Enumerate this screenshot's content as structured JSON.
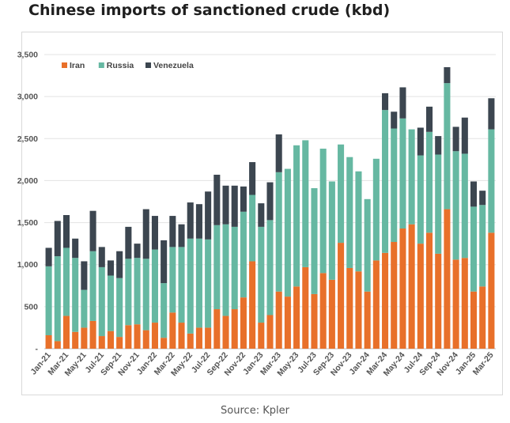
{
  "title": "Chinese imports of sanctioned crude (kbd)",
  "source": "Source: Kpler",
  "chart_data": {
    "type": "bar",
    "stacked": true,
    "title": "Chinese imports of sanctioned crude (kbd)",
    "xlabel": "",
    "ylabel": "",
    "ylim": [
      0,
      3500
    ],
    "yticks": [
      0,
      500,
      1000,
      1500,
      2000,
      2500,
      3000,
      3500
    ],
    "ytick_labels": [
      "-",
      "500",
      "1,000",
      "1,500",
      "2,000",
      "2,500",
      "3,000",
      "3,500"
    ],
    "grid": true,
    "legend": "top-left",
    "categories": [
      "Jan-21",
      "Feb-21",
      "Mar-21",
      "Apr-21",
      "May-21",
      "Jun-21",
      "Jul-21",
      "Aug-21",
      "Sep-21",
      "Oct-21",
      "Nov-21",
      "Dec-21",
      "Jan-22",
      "Feb-22",
      "Mar-22",
      "Apr-22",
      "May-22",
      "Jun-22",
      "Jul-22",
      "Aug-22",
      "Sep-22",
      "Oct-22",
      "Nov-22",
      "Dec-22",
      "Jan-23",
      "Feb-23",
      "Mar-23",
      "Apr-23",
      "May-23",
      "Jun-23",
      "Jul-23",
      "Aug-23",
      "Sep-23",
      "Oct-23",
      "Nov-23",
      "Dec-23",
      "Jan-24",
      "Feb-24",
      "Mar-24",
      "Apr-24",
      "May-24",
      "Jun-24",
      "Jul-24",
      "Aug-24",
      "Sep-24",
      "Oct-24",
      "Nov-24",
      "Dec-24",
      "Jan-25",
      "Feb-25",
      "Mar-25"
    ],
    "tick_labels": [
      "Jan-21",
      "Mar-21",
      "May-21",
      "Jul-21",
      "Sep-21",
      "Nov-21",
      "Jan-22",
      "Mar-22",
      "May-22",
      "Jul-22",
      "Sep-22",
      "Nov-22",
      "Jan-23",
      "Mar-23",
      "May-23",
      "Jul-23",
      "Sep-23",
      "Nov-23",
      "Jan-24",
      "Mar-24",
      "May-24",
      "Jul-24",
      "Sep-24",
      "Nov-24",
      "Jan-25",
      "Mar-25"
    ],
    "series": [
      {
        "name": "Iran",
        "color": "#e8702a",
        "values": [
          160,
          90,
          390,
          200,
          250,
          330,
          150,
          210,
          140,
          280,
          290,
          220,
          310,
          130,
          430,
          310,
          180,
          250,
          250,
          470,
          390,
          470,
          610,
          1040,
          310,
          400,
          680,
          620,
          740,
          970,
          650,
          900,
          820,
          1260,
          960,
          920,
          680,
          1050,
          1140,
          1270,
          1430,
          1480,
          1250,
          1380,
          1130,
          1660,
          1060,
          1080,
          680,
          740,
          1380
        ]
      },
      {
        "name": "Russia",
        "color": "#66b8a2",
        "values": [
          820,
          1010,
          810,
          880,
          450,
          830,
          820,
          660,
          700,
          790,
          790,
          850,
          870,
          650,
          780,
          900,
          1130,
          1060,
          1050,
          1000,
          1090,
          980,
          1020,
          790,
          1140,
          1130,
          1420,
          1520,
          1680,
          1510,
          1260,
          1480,
          1170,
          1170,
          1320,
          1190,
          1100,
          1210,
          1700,
          1350,
          1310,
          1130,
          1050,
          1200,
          1180,
          1500,
          1290,
          1240,
          1010,
          970,
          1230
        ]
      },
      {
        "name": "Venezuela",
        "color": "#3c4650",
        "values": [
          220,
          420,
          390,
          230,
          340,
          480,
          240,
          180,
          320,
          380,
          170,
          590,
          400,
          510,
          370,
          270,
          430,
          410,
          570,
          600,
          460,
          490,
          300,
          390,
          280,
          450,
          450,
          0,
          0,
          0,
          0,
          0,
          0,
          0,
          0,
          0,
          0,
          0,
          200,
          200,
          370,
          0,
          330,
          300,
          220,
          190,
          290,
          430,
          300,
          170,
          370
        ]
      }
    ]
  }
}
